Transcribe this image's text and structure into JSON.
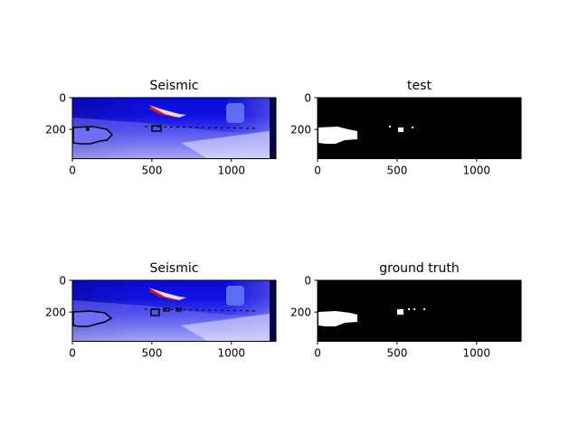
{
  "figure": {
    "background": "#ffffff"
  },
  "chart_data": [
    {
      "type": "heatmap",
      "title": "Seismic",
      "colormap": "seismic",
      "xlim": [
        0,
        1280
      ],
      "ylim": [
        384,
        0
      ],
      "xticks": [
        0,
        500,
        1000
      ],
      "yticks": [
        0,
        200
      ],
      "contour_regions": [
        {
          "x": [
            0,
            250
          ],
          "y": [
            175,
            295
          ]
        },
        {
          "x": [
            500,
            560
          ],
          "y": [
            175,
            210
          ]
        }
      ]
    },
    {
      "type": "heatmap",
      "title": "test",
      "colormap": "binary",
      "xlim": [
        0,
        1280
      ],
      "ylim": [
        384,
        0
      ],
      "xticks": [
        0,
        500,
        1000
      ],
      "yticks": [
        0,
        200
      ],
      "regions": [
        {
          "x": [
            0,
            250
          ],
          "y": [
            175,
            290
          ]
        },
        {
          "x": [
            510,
            550
          ],
          "y": [
            185,
            215
          ]
        },
        {
          "x": [
            450,
            460
          ],
          "y": [
            175,
            185
          ]
        },
        {
          "x": [
            595,
            605
          ],
          "y": [
            180,
            190
          ]
        }
      ]
    },
    {
      "type": "heatmap",
      "title": "Seismic",
      "colormap": "seismic",
      "xlim": [
        0,
        1280
      ],
      "ylim": [
        384,
        0
      ],
      "xticks": [
        0,
        500,
        1000
      ],
      "yticks": [
        0,
        200
      ],
      "contour_regions": [
        {
          "x": [
            0,
            245
          ],
          "y": [
            185,
            295
          ]
        },
        {
          "x": [
            490,
            540
          ],
          "y": [
            180,
            215
          ]
        },
        {
          "x": [
            570,
            610
          ],
          "y": [
            175,
            195
          ]
        },
        {
          "x": [
            650,
            680
          ],
          "y": [
            175,
            195
          ]
        }
      ]
    },
    {
      "type": "heatmap",
      "title": "ground truth",
      "colormap": "binary",
      "xlim": [
        0,
        1280
      ],
      "ylim": [
        384,
        0
      ],
      "xticks": [
        0,
        500,
        1000
      ],
      "yticks": [
        0,
        200
      ],
      "regions": [
        {
          "x": [
            0,
            250
          ],
          "y": [
            185,
            290
          ]
        },
        {
          "x": [
            500,
            545
          ],
          "y": [
            180,
            215
          ]
        },
        {
          "x": [
            570,
            580
          ],
          "y": [
            175,
            185
          ]
        },
        {
          "x": [
            600,
            610
          ],
          "y": [
            175,
            185
          ]
        },
        {
          "x": [
            665,
            675
          ],
          "y": [
            175,
            185
          ]
        }
      ]
    }
  ]
}
